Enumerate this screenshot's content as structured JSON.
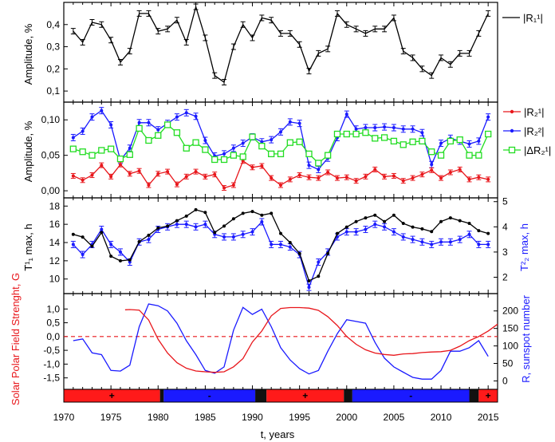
{
  "chart_data": [
    {
      "type": "line",
      "ylabel": "Amplitude, %",
      "ylim": [
        0.05,
        0.5
      ],
      "yticks": [
        "0,1",
        "0,2",
        "0,3",
        "0,4"
      ],
      "xlim": [
        1970,
        2016
      ],
      "legend_position": "right",
      "series": [
        {
          "name": "|R₁¹|",
          "color": "#000000",
          "marker": "errorbar",
          "x": [
            1971,
            1972,
            1973,
            1974,
            1975,
            1976,
            1977,
            1978,
            1979,
            1980,
            1981,
            1982,
            1983,
            1984,
            1985,
            1986,
            1987,
            1988,
            1989,
            1990,
            1991,
            1992,
            1993,
            1994,
            1995,
            1996,
            1997,
            1998,
            1999,
            2000,
            2001,
            2002,
            2003,
            2004,
            2005,
            2006,
            2007,
            2008,
            2009,
            2010,
            2011,
            2012,
            2013,
            2014,
            2015
          ],
          "values": [
            0.37,
            0.32,
            0.41,
            0.4,
            0.33,
            0.23,
            0.28,
            0.45,
            0.45,
            0.37,
            0.38,
            0.42,
            0.32,
            0.48,
            0.34,
            0.17,
            0.14,
            0.3,
            0.4,
            0.34,
            0.43,
            0.42,
            0.36,
            0.36,
            0.31,
            0.19,
            0.27,
            0.29,
            0.45,
            0.4,
            0.38,
            0.36,
            0.38,
            0.38,
            0.43,
            0.28,
            0.25,
            0.2,
            0.17,
            0.25,
            0.22,
            0.27,
            0.27,
            0.36,
            0.45
          ]
        }
      ]
    },
    {
      "type": "line",
      "ylabel": "Amplitude, %",
      "ylim": [
        -0.01,
        0.125
      ],
      "yticks": [
        "0,00",
        "0,05",
        "0,10"
      ],
      "xlim": [
        1970,
        2016
      ],
      "legend_position": "right",
      "series": [
        {
          "name": "|R₂¹|",
          "color": "#e8161b",
          "marker": "dot",
          "x": [
            1971,
            1972,
            1973,
            1974,
            1975,
            1976,
            1977,
            1978,
            1979,
            1980,
            1981,
            1982,
            1983,
            1984,
            1985,
            1986,
            1987,
            1988,
            1989,
            1990,
            1991,
            1992,
            1993,
            1994,
            1995,
            1996,
            1997,
            1998,
            1999,
            2000,
            2001,
            2002,
            2003,
            2004,
            2005,
            2006,
            2007,
            2008,
            2009,
            2010,
            2011,
            2012,
            2013,
            2014,
            2015
          ],
          "values": [
            0.021,
            0.015,
            0.022,
            0.036,
            0.02,
            0.037,
            0.024,
            0.028,
            0.008,
            0.024,
            0.027,
            0.009,
            0.02,
            0.027,
            0.02,
            0.023,
            0.004,
            0.008,
            0.042,
            0.033,
            0.035,
            0.018,
            0.008,
            0.016,
            0.022,
            0.019,
            0.018,
            0.026,
            0.018,
            0.019,
            0.014,
            0.02,
            0.03,
            0.02,
            0.021,
            0.014,
            0.018,
            0.023,
            0.029,
            0.018,
            0.026,
            0.03,
            0.016,
            0.019,
            0.016
          ]
        },
        {
          "name": "|R₂²|",
          "color": "#1a1aff",
          "marker": "dot",
          "x": [
            1971,
            1972,
            1973,
            1974,
            1975,
            1976,
            1977,
            1978,
            1979,
            1980,
            1981,
            1982,
            1983,
            1984,
            1985,
            1986,
            1987,
            1988,
            1989,
            1990,
            1991,
            1992,
            1993,
            1994,
            1995,
            1996,
            1997,
            1998,
            1999,
            2000,
            2001,
            2002,
            2003,
            2004,
            2005,
            2006,
            2007,
            2008,
            2009,
            2010,
            2011,
            2012,
            2013,
            2014,
            2015
          ],
          "values": [
            0.075,
            0.084,
            0.104,
            0.113,
            0.093,
            0.043,
            0.06,
            0.096,
            0.096,
            0.086,
            0.095,
            0.104,
            0.11,
            0.105,
            0.071,
            0.049,
            0.052,
            0.06,
            0.067,
            0.076,
            0.069,
            0.072,
            0.083,
            0.097,
            0.095,
            0.036,
            0.03,
            0.046,
            0.075,
            0.108,
            0.087,
            0.089,
            0.089,
            0.09,
            0.089,
            0.087,
            0.087,
            0.082,
            0.037,
            0.067,
            0.074,
            0.07,
            0.066,
            0.07,
            0.104
          ]
        },
        {
          "name": "|ΔR₂¹|",
          "color": "#22dd22",
          "marker": "square",
          "x": [
            1971,
            1972,
            1973,
            1974,
            1975,
            1976,
            1977,
            1978,
            1979,
            1980,
            1981,
            1982,
            1983,
            1984,
            1985,
            1986,
            1987,
            1988,
            1989,
            1990,
            1991,
            1992,
            1993,
            1994,
            1995,
            1996,
            1997,
            1998,
            1999,
            2000,
            2001,
            2002,
            2003,
            2004,
            2005,
            2006,
            2007,
            2008,
            2009,
            2010,
            2011,
            2012,
            2013,
            2014,
            2015
          ],
          "values": [
            0.059,
            0.055,
            0.05,
            0.057,
            0.059,
            0.045,
            0.051,
            0.088,
            0.071,
            0.078,
            0.093,
            0.082,
            0.06,
            0.068,
            0.058,
            0.044,
            0.044,
            0.05,
            0.048,
            0.076,
            0.063,
            0.052,
            0.052,
            0.068,
            0.069,
            0.052,
            0.039,
            0.05,
            0.08,
            0.08,
            0.08,
            0.082,
            0.074,
            0.075,
            0.07,
            0.065,
            0.069,
            0.07,
            0.055,
            0.05,
            0.07,
            0.072,
            0.05,
            0.05,
            0.08
          ]
        }
      ]
    },
    {
      "type": "line",
      "ylabel": "T¹₁ max, h",
      "ylabel_right": "T²₂ max, h",
      "ylim": [
        8.4,
        18.9
      ],
      "ylim_right": [
        1.35,
        5.15
      ],
      "yticks": [
        "10",
        "12",
        "14",
        "16",
        "18"
      ],
      "yticks_right": [
        "2",
        "3",
        "4",
        "5"
      ],
      "xlim": [
        1970,
        2016
      ],
      "series": [
        {
          "axis": "left",
          "color": "#000000",
          "x": [
            1971,
            1972,
            1973,
            1974,
            1975,
            1976,
            1977,
            1978,
            1979,
            1980,
            1981,
            1982,
            1983,
            1984,
            1985,
            1986,
            1987,
            1988,
            1989,
            1990,
            1991,
            1992,
            1993,
            1994,
            1995,
            1996,
            1997,
            1998,
            1999,
            2000,
            2001,
            2002,
            2003,
            2004,
            2005,
            2006,
            2007,
            2008,
            2009,
            2010,
            2011,
            2012,
            2013,
            2014,
            2015
          ],
          "values": [
            14.9,
            14.6,
            13.6,
            15.1,
            12.5,
            12.0,
            12.1,
            14.1,
            14.8,
            15.6,
            15.8,
            16.4,
            16.9,
            17.6,
            17.3,
            15.1,
            15.8,
            16.6,
            17.2,
            17.4,
            17.0,
            17.2,
            15.0,
            14.0,
            12.8,
            9.8,
            10.3,
            12.8,
            15.0,
            15.7,
            16.3,
            16.7,
            17.0,
            16.3,
            17.0,
            16.1,
            15.7,
            15.5,
            15.2,
            16.3,
            16.7,
            16.4,
            16.1,
            15.3,
            15.0
          ]
        },
        {
          "axis": "right",
          "color": "#1a1aff",
          "x": [
            1971,
            1972,
            1973,
            1974,
            1975,
            1976,
            1977,
            1978,
            1979,
            1980,
            1981,
            1982,
            1983,
            1984,
            1985,
            1986,
            1987,
            1988,
            1989,
            1990,
            1991,
            1992,
            1993,
            1994,
            1995,
            1996,
            1997,
            1998,
            1999,
            2000,
            2001,
            2002,
            2003,
            2004,
            2005,
            2006,
            2007,
            2008,
            2009,
            2010,
            2011,
            2012,
            2013,
            2014,
            2015
          ],
          "values": [
            3.3,
            2.9,
            3.3,
            3.9,
            3.3,
            3.0,
            2.6,
            3.4,
            3.5,
            3.9,
            4.0,
            4.1,
            4.1,
            4.0,
            4.1,
            3.7,
            3.6,
            3.6,
            3.7,
            3.8,
            4.2,
            3.3,
            3.3,
            3.2,
            2.9,
            1.6,
            2.6,
            3.0,
            3.6,
            3.8,
            3.8,
            3.9,
            4.1,
            4.0,
            3.8,
            3.6,
            3.5,
            3.4,
            3.3,
            3.4,
            3.4,
            3.5,
            3.7,
            3.3,
            3.3
          ]
        }
      ]
    },
    {
      "type": "line",
      "ylabel": "Solar Polar Field Strenght, G",
      "ylabel_right": "R, sunspot number",
      "xlabel": "t, years",
      "ylim": [
        -1.8,
        1.5
      ],
      "ylim_right": [
        -15,
        245
      ],
      "yticks": [
        "-1,5",
        "-1,0",
        "-0,5",
        "0,0",
        "0,5",
        "1,0"
      ],
      "yticks_right": [
        "0",
        "50",
        "100",
        "150",
        "200"
      ],
      "xlim": [
        1970,
        2016
      ],
      "xticks": [
        "1970",
        "1975",
        "1980",
        "1985",
        "1990",
        "1995",
        "2000",
        "2005",
        "2010",
        "2015"
      ],
      "reference_line": 0.0,
      "series": [
        {
          "axis": "left",
          "name": "Solar Polar Field",
          "color": "#e8161b",
          "x": [
            1976.5,
            1977,
            1978,
            1979,
            1980,
            1981,
            1982,
            1983,
            1984,
            1985,
            1986,
            1987,
            1988,
            1989,
            1990,
            1990.5,
            1991,
            1992,
            1993,
            1994,
            1995,
            1996,
            1997,
            1998,
            1999,
            2000,
            2001,
            2002,
            2003,
            2004,
            2005,
            2006,
            2007,
            2008,
            2009,
            2010,
            2011,
            2012,
            2013,
            2014,
            2015,
            2016
          ],
          "values": [
            0.97,
            0.98,
            0.96,
            0.6,
            -0.1,
            -0.6,
            -0.95,
            -1.15,
            -1.25,
            -1.28,
            -1.3,
            -1.28,
            -1.1,
            -0.8,
            -0.2,
            0.0,
            0.2,
            0.75,
            1.02,
            1.05,
            1.05,
            1.03,
            0.95,
            0.72,
            0.4,
            0.0,
            -0.28,
            -0.48,
            -0.6,
            -0.65,
            -0.68,
            -0.63,
            -0.62,
            -0.58,
            -0.56,
            -0.55,
            -0.5,
            -0.35,
            -0.15,
            0.0,
            0.2,
            0.45
          ]
        },
        {
          "axis": "right",
          "name": "R, sunspot number",
          "color": "#1a1aff",
          "x": [
            1971,
            1972,
            1973,
            1974,
            1975,
            1976,
            1977,
            1978,
            1979,
            1980,
            1981,
            1982,
            1983,
            1984,
            1985,
            1986,
            1987,
            1988,
            1989,
            1990,
            1991,
            1992,
            1993,
            1994,
            1995,
            1996,
            1997,
            1998,
            1999,
            2000,
            2001,
            2002,
            2003,
            2004,
            2005,
            2006,
            2007,
            2008,
            2009,
            2010,
            2011,
            2012,
            2013,
            2014,
            2015
          ],
          "values": [
            115,
            120,
            80,
            75,
            30,
            28,
            45,
            155,
            220,
            215,
            200,
            165,
            115,
            75,
            30,
            22,
            40,
            145,
            210,
            190,
            205,
            155,
            95,
            60,
            35,
            20,
            30,
            85,
            135,
            175,
            170,
            165,
            110,
            65,
            40,
            25,
            10,
            5,
            5,
            30,
            85,
            85,
            95,
            115,
            70
          ]
        }
      ]
    }
  ],
  "polarity_bar": [
    {
      "start": 1970,
      "end": 1980.2,
      "color": "#ff1a1a",
      "sign": "+"
    },
    {
      "start": 1980.2,
      "end": 1980.6,
      "color": "#111111",
      "sign": ""
    },
    {
      "start": 1980.6,
      "end": 1990.3,
      "color": "#1a1aff",
      "sign": "-"
    },
    {
      "start": 1990.3,
      "end": 1991.5,
      "color": "#111111",
      "sign": ""
    },
    {
      "start": 1991.5,
      "end": 1999.7,
      "color": "#ff1a1a",
      "sign": "+"
    },
    {
      "start": 1999.7,
      "end": 2000.6,
      "color": "#111111",
      "sign": ""
    },
    {
      "start": 2000.6,
      "end": 2013.0,
      "color": "#1a1aff",
      "sign": "-"
    },
    {
      "start": 2013.0,
      "end": 2014.0,
      "color": "#111111",
      "sign": ""
    },
    {
      "start": 2014.0,
      "end": 2016.0,
      "color": "#ff1a1a",
      "sign": "+"
    }
  ]
}
